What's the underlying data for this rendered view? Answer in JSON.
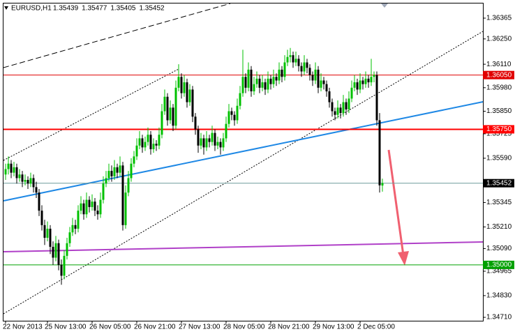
{
  "chart_data": {
    "type": "candlestick",
    "title": "EURUSD,H1",
    "header_values": [
      1.35439,
      1.35477,
      1.35405,
      1.35452
    ],
    "up_color": "#00c000",
    "down_color": "#000000",
    "ylim": [
      1.34691,
      1.36446
    ],
    "yticks": [
      1.36365,
      {
        "value": 1.3625,
        "label": "1.36250"
      },
      {
        "value": 1.3611,
        "label": "1.36110"
      },
      {
        "value": 1.3598,
        "label": "1.35980"
      },
      {
        "value": 1.3585,
        "label": "1.35850"
      },
      1.35725,
      {
        "value": 1.3559,
        "label": "1.35590"
      },
      1.35345,
      {
        "value": 1.3521,
        "label": "1.35210"
      },
      {
        "value": 1.3509,
        "label": "1.35090"
      },
      1.34965,
      {
        "value": 1.3483,
        "label": "1.34830"
      },
      {
        "value": 1.3471,
        "label": "1.34710"
      }
    ],
    "levels": [
      {
        "value": 1.3605,
        "label": "1.36050",
        "color": "#e00000"
      },
      {
        "value": 1.3575,
        "label": "1.35750",
        "color": "#ff0000"
      },
      {
        "value": 1.35452,
        "label": "1.35452",
        "color": "#000000"
      },
      {
        "value": 1.35,
        "label": "1.35000",
        "color": "#00a000"
      }
    ],
    "categories": [
      "22 Nov 2013",
      null,
      null,
      null,
      null,
      null,
      null,
      null,
      null,
      null,
      null,
      null,
      null,
      null,
      null,
      "25 Nov 13:00",
      null,
      null,
      null,
      null,
      null,
      null,
      null,
      null,
      null,
      null,
      null,
      null,
      null,
      null,
      null,
      "26 Nov 05:00",
      null,
      null,
      null,
      null,
      null,
      null,
      null,
      null,
      null,
      null,
      null,
      null,
      null,
      null,
      null,
      "26 Nov 21:00",
      null,
      null,
      null,
      null,
      null,
      null,
      null,
      null,
      null,
      null,
      null,
      null,
      null,
      null,
      null,
      "27 Nov 13:00",
      null,
      null,
      null,
      null,
      null,
      null,
      null,
      null,
      null,
      null,
      null,
      null,
      null,
      null,
      null,
      "28 Nov 05:00",
      null,
      null,
      null,
      null,
      null,
      null,
      null,
      null,
      null,
      null,
      null,
      null,
      null,
      null,
      null,
      "28 Nov 21:00",
      null,
      null,
      null,
      null,
      null,
      null,
      null,
      null,
      null,
      null,
      null,
      null,
      null,
      null,
      null,
      "29 Nov 13:00",
      null,
      null,
      null,
      null,
      null,
      null,
      null,
      null,
      null,
      null,
      null,
      null,
      null,
      null,
      null,
      "2 Dec 05:00",
      null,
      null,
      null,
      null,
      null,
      null,
      null,
      null
    ],
    "candles": [
      [
        1.355,
        1.3556,
        1.3547,
        1.3553
      ],
      [
        1.3553,
        1.356,
        1.355,
        1.3556
      ],
      [
        1.3556,
        1.3558,
        1.3548,
        1.3551
      ],
      [
        1.3551,
        1.3557,
        1.3549,
        1.3554
      ],
      [
        1.3554,
        1.3556,
        1.3545,
        1.3548
      ],
      [
        1.3548,
        1.3553,
        1.3546,
        1.355
      ],
      [
        1.355,
        1.3552,
        1.3543,
        1.3546
      ],
      [
        1.3546,
        1.355,
        1.3544,
        1.3547
      ],
      [
        1.3547,
        1.3549,
        1.3542,
        1.3545
      ],
      [
        1.3545,
        1.3551,
        1.3543,
        1.3548
      ],
      [
        1.3548,
        1.355,
        1.354,
        1.3543
      ],
      [
        1.3543,
        1.3546,
        1.3537,
        1.354
      ],
      [
        1.354,
        1.3542,
        1.3527,
        1.353
      ],
      [
        1.353,
        1.3533,
        1.3519,
        1.3522
      ],
      [
        1.3522,
        1.3525,
        1.3511,
        1.3515
      ],
      [
        1.3515,
        1.3524,
        1.3513,
        1.352
      ],
      [
        1.352,
        1.3522,
        1.3506,
        1.351
      ],
      [
        1.351,
        1.3513,
        1.35,
        1.3504
      ],
      [
        1.3504,
        1.3516,
        1.3502,
        1.3512
      ],
      [
        1.3512,
        1.3514,
        1.3497,
        1.35
      ],
      [
        1.35,
        1.3503,
        1.3489,
        1.3494
      ],
      [
        1.3494,
        1.3508,
        1.3492,
        1.3505
      ],
      [
        1.3505,
        1.3515,
        1.3503,
        1.3512
      ],
      [
        1.3512,
        1.3521,
        1.351,
        1.3518
      ],
      [
        1.3518,
        1.3526,
        1.3516,
        1.3522
      ],
      [
        1.3522,
        1.3525,
        1.3517,
        1.352
      ],
      [
        1.352,
        1.3533,
        1.3518,
        1.353
      ],
      [
        1.353,
        1.3538,
        1.3528,
        1.3534
      ],
      [
        1.3534,
        1.3536,
        1.3525,
        1.3528
      ],
      [
        1.3528,
        1.354,
        1.3526,
        1.3536
      ],
      [
        1.3536,
        1.3538,
        1.3529,
        1.3532
      ],
      [
        1.3532,
        1.3539,
        1.353,
        1.3535
      ],
      [
        1.3535,
        1.3537,
        1.3527,
        1.353
      ],
      [
        1.353,
        1.3533,
        1.3525,
        1.3528
      ],
      [
        1.3528,
        1.354,
        1.3526,
        1.3536
      ],
      [
        1.3536,
        1.3549,
        1.3534,
        1.3545
      ],
      [
        1.3545,
        1.3552,
        1.3543,
        1.3548
      ],
      [
        1.3548,
        1.3556,
        1.3546,
        1.3552
      ],
      [
        1.3552,
        1.3555,
        1.3546,
        1.3549
      ],
      [
        1.3549,
        1.3558,
        1.3547,
        1.3554
      ],
      [
        1.3554,
        1.3556,
        1.3548,
        1.3551
      ],
      [
        1.3551,
        1.356,
        1.3549,
        1.3555
      ],
      [
        1.3555,
        1.3557,
        1.3519,
        1.3522
      ],
      [
        1.3522,
        1.3544,
        1.352,
        1.354
      ],
      [
        1.354,
        1.3552,
        1.3538,
        1.3548
      ],
      [
        1.3548,
        1.3559,
        1.3546,
        1.3556
      ],
      [
        1.3556,
        1.3563,
        1.3554,
        1.356
      ],
      [
        1.356,
        1.357,
        1.3558,
        1.3566
      ],
      [
        1.3566,
        1.3574,
        1.3564,
        1.357
      ],
      [
        1.357,
        1.3572,
        1.3562,
        1.3565
      ],
      [
        1.3565,
        1.3571,
        1.3563,
        1.3568
      ],
      [
        1.3568,
        1.3576,
        1.3566,
        1.3572
      ],
      [
        1.3572,
        1.3574,
        1.3561,
        1.3564
      ],
      [
        1.3564,
        1.357,
        1.3562,
        1.3567
      ],
      [
        1.3567,
        1.3569,
        1.3563,
        1.3566
      ],
      [
        1.3566,
        1.3576,
        1.3564,
        1.3572
      ],
      [
        1.3572,
        1.3589,
        1.357,
        1.3585
      ],
      [
        1.3585,
        1.3597,
        1.3583,
        1.3593
      ],
      [
        1.3593,
        1.3595,
        1.3577,
        1.358
      ],
      [
        1.358,
        1.3591,
        1.3578,
        1.3587
      ],
      [
        1.3587,
        1.3589,
        1.3574,
        1.3577
      ],
      [
        1.3577,
        1.3602,
        1.3575,
        1.3598
      ],
      [
        1.3598,
        1.3611,
        1.3596,
        1.3604
      ],
      [
        1.3604,
        1.3606,
        1.3592,
        1.3595
      ],
      [
        1.3595,
        1.3605,
        1.3593,
        1.3601
      ],
      [
        1.3601,
        1.3603,
        1.3587,
        1.359
      ],
      [
        1.359,
        1.36,
        1.3588,
        1.3597
      ],
      [
        1.3597,
        1.3599,
        1.3579,
        1.3582
      ],
      [
        1.3582,
        1.3584,
        1.3572,
        1.3575
      ],
      [
        1.3575,
        1.3577,
        1.3562,
        1.3566
      ],
      [
        1.3566,
        1.3573,
        1.3564,
        1.357
      ],
      [
        1.357,
        1.3572,
        1.3561,
        1.3565
      ],
      [
        1.3565,
        1.3574,
        1.3563,
        1.357
      ],
      [
        1.357,
        1.3572,
        1.3565,
        1.3568
      ],
      [
        1.3568,
        1.3577,
        1.3566,
        1.3573
      ],
      [
        1.3573,
        1.3575,
        1.3563,
        1.3566
      ],
      [
        1.3566,
        1.3571,
        1.3564,
        1.3568
      ],
      [
        1.3568,
        1.357,
        1.3561,
        1.3565
      ],
      [
        1.3565,
        1.3573,
        1.3563,
        1.357
      ],
      [
        1.357,
        1.3582,
        1.3568,
        1.3578
      ],
      [
        1.3578,
        1.3589,
        1.3576,
        1.3585
      ],
      [
        1.3585,
        1.3587,
        1.358,
        1.3583
      ],
      [
        1.3583,
        1.3585,
        1.3577,
        1.358
      ],
      [
        1.358,
        1.3592,
        1.3578,
        1.3588
      ],
      [
        1.3588,
        1.3599,
        1.3586,
        1.3595
      ],
      [
        1.3595,
        1.3619,
        1.3593,
        1.3604
      ],
      [
        1.3604,
        1.3606,
        1.3595,
        1.3598
      ],
      [
        1.3598,
        1.3612,
        1.3596,
        1.3608
      ],
      [
        1.3608,
        1.361,
        1.3593,
        1.3596
      ],
      [
        1.3596,
        1.3604,
        1.3594,
        1.36
      ],
      [
        1.36,
        1.3607,
        1.3598,
        1.3603
      ],
      [
        1.3603,
        1.3605,
        1.3595,
        1.3598
      ],
      [
        1.3598,
        1.3605,
        1.3596,
        1.3601
      ],
      [
        1.3601,
        1.3603,
        1.3594,
        1.3597
      ],
      [
        1.3597,
        1.3607,
        1.3595,
        1.3603
      ],
      [
        1.3603,
        1.3605,
        1.3597,
        1.36
      ],
      [
        1.36,
        1.3608,
        1.3598,
        1.3604
      ],
      [
        1.3604,
        1.3606,
        1.3599,
        1.3602
      ],
      [
        1.3602,
        1.3612,
        1.36,
        1.3608
      ],
      [
        1.3608,
        1.361,
        1.3601,
        1.3604
      ],
      [
        1.3604,
        1.3616,
        1.3602,
        1.3612
      ],
      [
        1.3612,
        1.3619,
        1.361,
        1.3615
      ],
      [
        1.3615,
        1.362,
        1.3612,
        1.3616
      ],
      [
        1.3616,
        1.3618,
        1.3609,
        1.3612
      ],
      [
        1.3612,
        1.3618,
        1.361,
        1.3614
      ],
      [
        1.3614,
        1.3616,
        1.3607,
        1.361
      ],
      [
        1.361,
        1.3612,
        1.3604,
        1.3607
      ],
      [
        1.3607,
        1.3616,
        1.3605,
        1.3612
      ],
      [
        1.3612,
        1.3614,
        1.3606,
        1.3609
      ],
      [
        1.3609,
        1.3611,
        1.3602,
        1.3605
      ],
      [
        1.3605,
        1.3607,
        1.3599,
        1.3602
      ],
      [
        1.3602,
        1.3612,
        1.36,
        1.3608
      ],
      [
        1.3608,
        1.361,
        1.3595,
        1.3598
      ],
      [
        1.3598,
        1.3606,
        1.3596,
        1.3602
      ],
      [
        1.3602,
        1.3604,
        1.3597,
        1.36
      ],
      [
        1.36,
        1.3602,
        1.3593,
        1.3596
      ],
      [
        1.3596,
        1.3598,
        1.3587,
        1.359
      ],
      [
        1.359,
        1.3592,
        1.3582,
        1.3585
      ],
      [
        1.3585,
        1.3587,
        1.358,
        1.3583
      ],
      [
        1.3583,
        1.3591,
        1.3581,
        1.3587
      ],
      [
        1.3587,
        1.3589,
        1.3581,
        1.3584
      ],
      [
        1.3584,
        1.3594,
        1.3582,
        1.359
      ],
      [
        1.359,
        1.3592,
        1.3583,
        1.3586
      ],
      [
        1.3586,
        1.3596,
        1.3584,
        1.3592
      ],
      [
        1.3592,
        1.3602,
        1.359,
        1.3598
      ],
      [
        1.3598,
        1.3605,
        1.3596,
        1.3601
      ],
      [
        1.3601,
        1.3603,
        1.3594,
        1.3597
      ],
      [
        1.3597,
        1.3606,
        1.3595,
        1.3602
      ],
      [
        1.3602,
        1.3604,
        1.3597,
        1.36
      ],
      [
        1.36,
        1.3607,
        1.3598,
        1.3603
      ],
      [
        1.3603,
        1.3605,
        1.3598,
        1.3601
      ],
      [
        1.3601,
        1.3614,
        1.3599,
        1.3604
      ],
      [
        1.3604,
        1.3607,
        1.3601,
        1.3605
      ],
      [
        1.3605,
        1.3607,
        1.3577,
        1.358
      ],
      [
        1.358,
        1.3584,
        1.354,
        1.3544
      ],
      [
        1.35439,
        1.35477,
        1.35405,
        1.35452
      ]
    ]
  }
}
